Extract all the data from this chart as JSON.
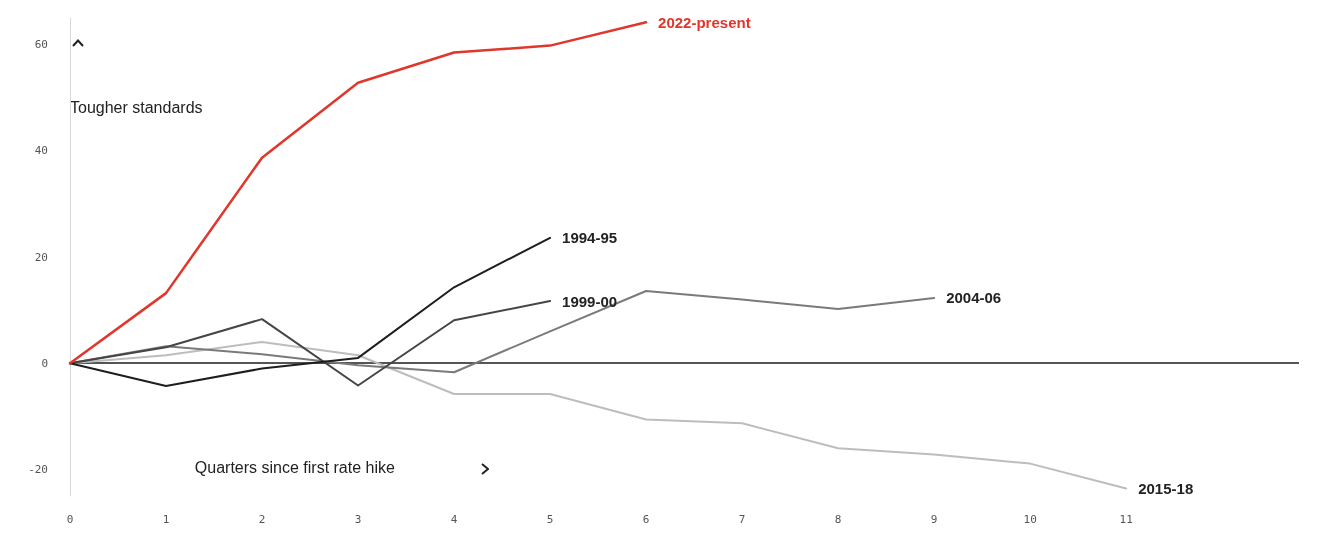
{
  "chart_data": {
    "type": "line",
    "xlabel": "Quarters since first rate hike",
    "ylabel": "Tougher standards",
    "x": [
      0,
      1,
      2,
      3,
      4,
      5,
      6,
      7,
      8,
      9,
      10,
      11
    ],
    "series": [
      {
        "name": "2022-present",
        "color": "#e0362c",
        "values": [
          0,
          13.2,
          38.7,
          52.8,
          58.5,
          59.8,
          64.2,
          null,
          null,
          null,
          null,
          null
        ]
      },
      {
        "name": "1994-95",
        "color": "#1e1e1e",
        "values": [
          0,
          -4.3,
          -1,
          1,
          14.3,
          23.6,
          null,
          null,
          null,
          null,
          null,
          null
        ]
      },
      {
        "name": "1999-00",
        "color": "#454545",
        "values": [
          0,
          3,
          8.3,
          -4.2,
          8.1,
          11.7,
          null,
          null,
          null,
          null,
          null,
          null
        ]
      },
      {
        "name": "2004-06",
        "color": "#7a7a7a",
        "values": [
          0,
          3.2,
          1.7,
          -0.4,
          -1.7,
          6,
          13.6,
          12,
          10.2,
          12.3,
          null,
          null
        ]
      },
      {
        "name": "2015-18",
        "color": "#bdbdbd",
        "values": [
          0,
          1.5,
          4,
          1.5,
          -5.8,
          -5.8,
          -10.6,
          -11.3,
          -16,
          -17.2,
          -18.9,
          -23.6
        ]
      }
    ],
    "ref_lines": [
      {
        "axis": "y",
        "value": 0,
        "color": "#555555"
      }
    ],
    "xlim": [
      0,
      12.8
    ],
    "xticks": [
      0,
      1,
      2,
      3,
      4,
      5,
      6,
      7,
      8,
      9,
      10,
      11
    ],
    "ylim": [
      -25,
      65
    ],
    "yticks": [
      -20,
      0,
      20,
      40,
      60
    ],
    "grid": false,
    "legend": false,
    "marker": "none",
    "line_style": "solid"
  }
}
